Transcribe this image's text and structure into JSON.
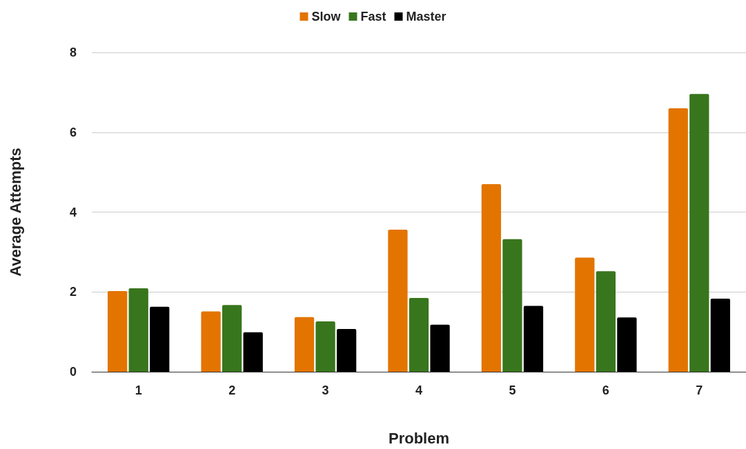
{
  "chart_data": {
    "type": "bar",
    "xlabel": "Problem",
    "ylabel": "Average Attempts",
    "categories": [
      "1",
      "2",
      "3",
      "4",
      "5",
      "6",
      "7"
    ],
    "series": [
      {
        "name": "Slow",
        "color": "#e37400",
        "values": [
          2.02,
          1.51,
          1.37,
          3.56,
          4.7,
          2.86,
          6.6
        ]
      },
      {
        "name": "Fast",
        "color": "#38761d",
        "values": [
          2.09,
          1.67,
          1.26,
          1.85,
          3.32,
          2.52,
          6.96
        ]
      },
      {
        "name": "Master",
        "color": "#000000",
        "values": [
          1.63,
          0.99,
          1.07,
          1.18,
          1.65,
          1.36,
          1.83
        ]
      }
    ],
    "ylim": [
      0,
      8
    ],
    "yticks": [
      0,
      2,
      4,
      6,
      8
    ],
    "grid": "y",
    "legend": "top"
  }
}
